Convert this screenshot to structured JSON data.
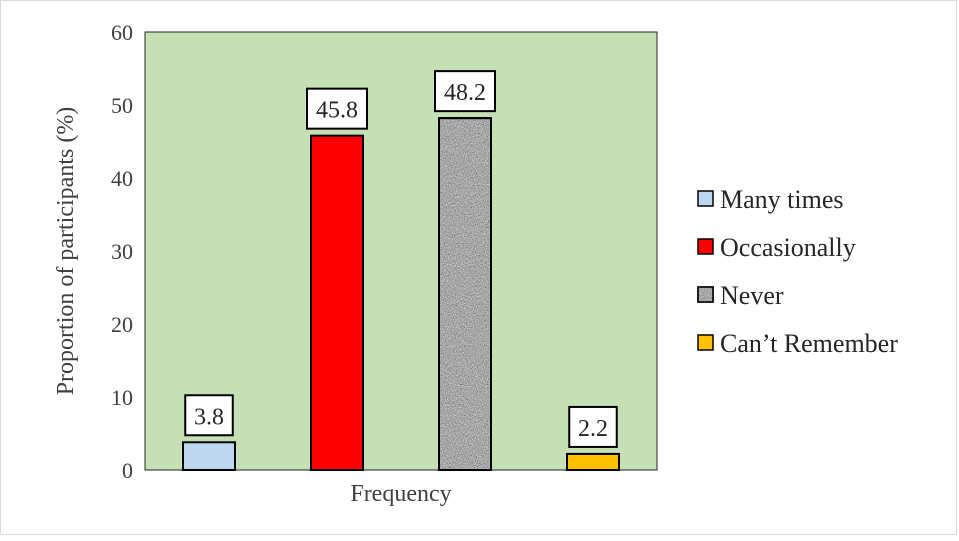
{
  "chart_data": {
    "type": "bar",
    "categories": [
      "Frequency"
    ],
    "series": [
      {
        "name": "Many times",
        "values": [
          3.8
        ],
        "color": "#bdd7ee",
        "pattern": "solid"
      },
      {
        "name": "Occasionally",
        "values": [
          45.8
        ],
        "color": "#ff0000",
        "pattern": "solid"
      },
      {
        "name": "Never",
        "values": [
          48.2
        ],
        "color": "#8c8c8c",
        "pattern": "speckled-granite"
      },
      {
        "name": "Can’t Remember",
        "values": [
          2.2
        ],
        "color": "#ffc000",
        "pattern": "solid"
      }
    ],
    "xlabel": "Frequency",
    "ylabel": "Proportion of participants (%)",
    "ylim": [
      0,
      60
    ],
    "yticks": [
      "0",
      "10",
      "20",
      "30",
      "40",
      "50",
      "60"
    ],
    "data_labels": [
      "3.8",
      "45.8",
      "48.2",
      "2.2"
    ],
    "grid": false,
    "plot_background": "#c5e0b4",
    "legend_position": "right"
  }
}
